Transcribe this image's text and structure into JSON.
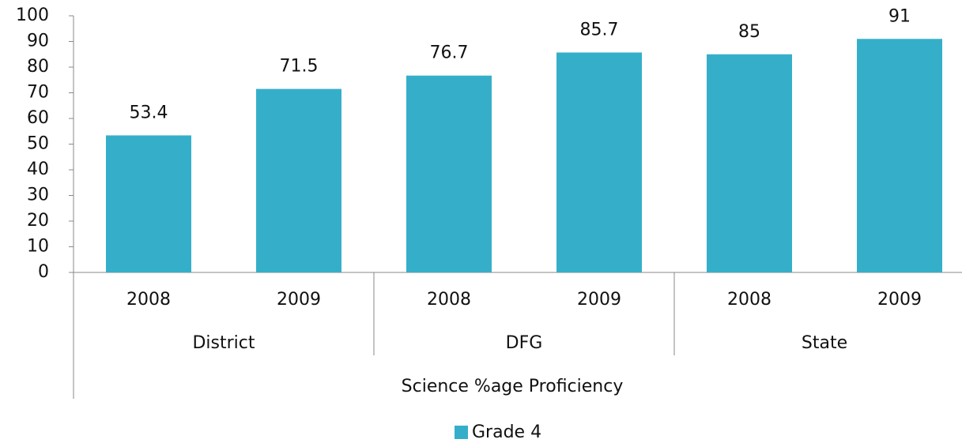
{
  "chart_data": {
    "type": "bar",
    "groups": [
      {
        "label": "District",
        "categories": [
          "2008",
          "2009"
        ]
      },
      {
        "label": "DFG",
        "categories": [
          "2008",
          "2009"
        ]
      },
      {
        "label": "State",
        "categories": [
          "2008",
          "2009"
        ]
      }
    ],
    "x_label": "Science %age Proficiency",
    "series": [
      {
        "name": "Grade 4",
        "color": "#35afc9",
        "values": [
          53.4,
          71.5,
          76.7,
          85.7,
          85,
          91
        ]
      }
    ],
    "ylim": [
      0,
      100
    ],
    "yticks": [
      0,
      10,
      20,
      30,
      40,
      50,
      60,
      70,
      80,
      90,
      100
    ],
    "grid": false,
    "legend": "bottom"
  }
}
